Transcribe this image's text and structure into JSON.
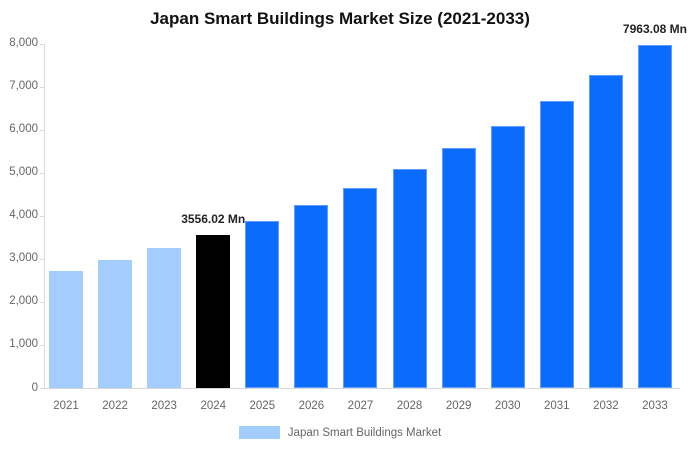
{
  "chart_data": {
    "type": "bar",
    "title": "Japan Smart Buildings Market Size (2021-2033)",
    "categories": [
      "2021",
      "2022",
      "2023",
      "2024",
      "2025",
      "2026",
      "2027",
      "2028",
      "2029",
      "2030",
      "2031",
      "2032",
      "2033"
    ],
    "series": [
      {
        "name": "Japan Smart Buildings Market",
        "values": [
          2718,
          2973,
          3251,
          3556.02,
          3889,
          4253,
          4652,
          5088,
          5564,
          6086,
          6656,
          7279,
          7963.08
        ]
      }
    ],
    "bar_roles": [
      "historical",
      "historical",
      "historical",
      "base_year",
      "forecast",
      "forecast",
      "forecast",
      "forecast",
      "forecast",
      "forecast",
      "forecast",
      "forecast",
      "forecast"
    ],
    "role_colors": {
      "historical": "#a3cdfc",
      "base_year": "#000000",
      "forecast": "#0a6bfc"
    },
    "annotations": [
      {
        "category": "2024",
        "text": "3556.02 Mn"
      },
      {
        "category": "2033",
        "text": "7963.08 Mn"
      }
    ],
    "y_axis": {
      "min": 0,
      "max": 8000,
      "tick_step": 1000,
      "tick_labels": [
        "0",
        "1,000",
        "2,000",
        "3,000",
        "4,000",
        "5,000",
        "6,000",
        "7,000",
        "8,000"
      ]
    },
    "grid": false,
    "axis_color": "#d9d9d9",
    "tick_label_color": "#666666",
    "legend": {
      "label": "Japan Smart Buildings Market",
      "swatch_color": "#a3cdfc"
    }
  }
}
